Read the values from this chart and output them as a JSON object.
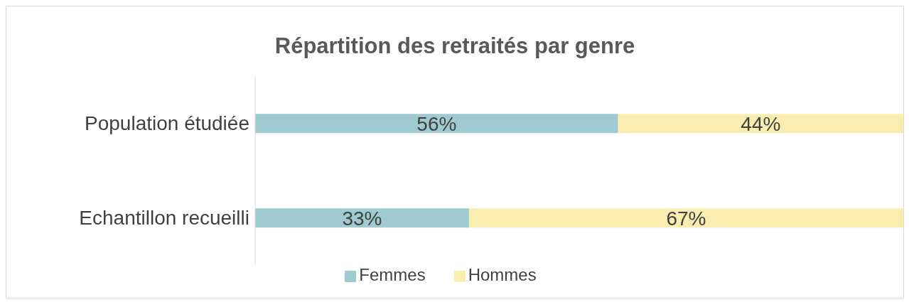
{
  "chart_data": {
    "type": "bar",
    "orientation": "horizontal",
    "stacked": true,
    "title": "Répartition des retraités par genre",
    "categories": [
      "Population étudiée",
      "Echantillon recueilli"
    ],
    "series": [
      {
        "name": "Femmes",
        "color": "#9fcad0",
        "values": [
          56,
          33
        ],
        "value_labels": [
          "56%",
          "33%"
        ]
      },
      {
        "name": "Hommes",
        "color": "#f9edb0",
        "values": [
          44,
          67
        ],
        "value_labels": [
          "44%",
          "67%"
        ]
      }
    ],
    "xlim": [
      0,
      100
    ],
    "tick_labels": "y",
    "legend": "bottom"
  }
}
